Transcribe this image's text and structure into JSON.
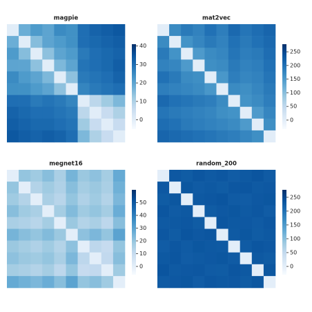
{
  "chart_data": [
    {
      "type": "heatmap",
      "title": "magpie",
      "colormap": "Blues",
      "zlim": [
        -5,
        41
      ],
      "zticks": [
        0,
        10,
        20,
        30,
        40
      ],
      "z": [
        [
          0,
          18,
          22,
          20,
          25,
          24,
          30,
          32,
          33,
          34
        ],
        [
          18,
          0,
          15,
          20,
          22,
          24,
          30,
          31,
          32,
          33
        ],
        [
          22,
          15,
          0,
          14,
          20,
          22,
          28,
          30,
          31,
          32
        ],
        [
          20,
          20,
          14,
          0,
          16,
          20,
          29,
          30,
          31,
          33
        ],
        [
          25,
          22,
          20,
          16,
          0,
          14,
          28,
          29,
          30,
          32
        ],
        [
          24,
          24,
          22,
          20,
          14,
          0,
          26,
          28,
          29,
          30
        ],
        [
          30,
          30,
          28,
          29,
          28,
          26,
          0,
          8,
          12,
          16
        ],
        [
          32,
          31,
          30,
          30,
          29,
          28,
          8,
          0,
          6,
          10
        ],
        [
          33,
          32,
          31,
          31,
          30,
          29,
          12,
          6,
          0,
          6
        ],
        [
          34,
          33,
          32,
          33,
          32,
          30,
          16,
          10,
          6,
          0
        ]
      ]
    },
    {
      "type": "heatmap",
      "title": "mat2vec",
      "colormap": "Blues",
      "zlim": [
        -33,
        278
      ],
      "zticks": [
        0,
        50,
        100,
        150,
        200,
        250
      ],
      "z": [
        [
          0,
          170,
          190,
          180,
          200,
          185,
          210,
          195,
          205,
          215
        ],
        [
          170,
          0,
          160,
          175,
          190,
          180,
          200,
          190,
          200,
          210
        ],
        [
          190,
          160,
          0,
          150,
          170,
          175,
          195,
          185,
          190,
          205
        ],
        [
          180,
          175,
          150,
          0,
          165,
          170,
          190,
          180,
          185,
          200
        ],
        [
          200,
          190,
          170,
          165,
          0,
          155,
          185,
          175,
          180,
          195
        ],
        [
          185,
          180,
          175,
          170,
          155,
          0,
          170,
          165,
          175,
          190
        ],
        [
          210,
          200,
          195,
          190,
          185,
          170,
          0,
          160,
          170,
          185
        ],
        [
          195,
          190,
          185,
          180,
          175,
          165,
          160,
          0,
          150,
          175
        ],
        [
          205,
          200,
          190,
          185,
          180,
          175,
          170,
          150,
          0,
          165
        ],
        [
          215,
          210,
          205,
          200,
          195,
          190,
          185,
          175,
          165,
          0
        ]
      ]
    },
    {
      "type": "heatmap",
      "title": "megnet16",
      "colormap": "Blues",
      "zlim": [
        -6.5,
        60
      ],
      "zticks": [
        0,
        10,
        20,
        30,
        40,
        50
      ],
      "z": [
        [
          0,
          20,
          18,
          22,
          16,
          25,
          19,
          21,
          17,
          28
        ],
        [
          20,
          0,
          14,
          18,
          15,
          22,
          17,
          19,
          16,
          26
        ],
        [
          18,
          14,
          0,
          16,
          13,
          20,
          15,
          18,
          14,
          24
        ],
        [
          22,
          18,
          16,
          0,
          17,
          23,
          18,
          20,
          17,
          27
        ],
        [
          16,
          15,
          13,
          17,
          0,
          19,
          14,
          16,
          12,
          22
        ],
        [
          25,
          22,
          20,
          23,
          19,
          0,
          21,
          24,
          20,
          30
        ],
        [
          19,
          17,
          15,
          18,
          14,
          21,
          0,
          12,
          10,
          20
        ],
        [
          21,
          19,
          18,
          20,
          16,
          24,
          12,
          0,
          11,
          22
        ],
        [
          17,
          16,
          14,
          17,
          12,
          20,
          10,
          11,
          0,
          18
        ],
        [
          28,
          26,
          24,
          27,
          22,
          30,
          20,
          22,
          18,
          0
        ]
      ]
    },
    {
      "type": "heatmap",
      "title": "random_200",
      "colormap": "Blues",
      "zlim": [
        -30,
        277
      ],
      "zticks": [
        0,
        50,
        100,
        150,
        200,
        250
      ],
      "z": [
        [
          0,
          230,
          226,
          233,
          228,
          231,
          225,
          229,
          234,
          227
        ],
        [
          230,
          0,
          232,
          227,
          229,
          226,
          231,
          233,
          228,
          230
        ],
        [
          226,
          232,
          0,
          229,
          231,
          234,
          227,
          225,
          230,
          232
        ],
        [
          233,
          227,
          229,
          0,
          226,
          230,
          232,
          228,
          231,
          225
        ],
        [
          228,
          229,
          231,
          226,
          0,
          233,
          229,
          230,
          227,
          231
        ],
        [
          231,
          226,
          234,
          230,
          233,
          0,
          228,
          232,
          226,
          229
        ],
        [
          225,
          231,
          227,
          232,
          229,
          228,
          0,
          227,
          233,
          230
        ],
        [
          229,
          233,
          225,
          228,
          230,
          232,
          227,
          0,
          229,
          226
        ],
        [
          234,
          228,
          230,
          231,
          227,
          226,
          233,
          229,
          0,
          232
        ],
        [
          227,
          230,
          232,
          225,
          231,
          229,
          230,
          226,
          232,
          0
        ]
      ]
    }
  ]
}
